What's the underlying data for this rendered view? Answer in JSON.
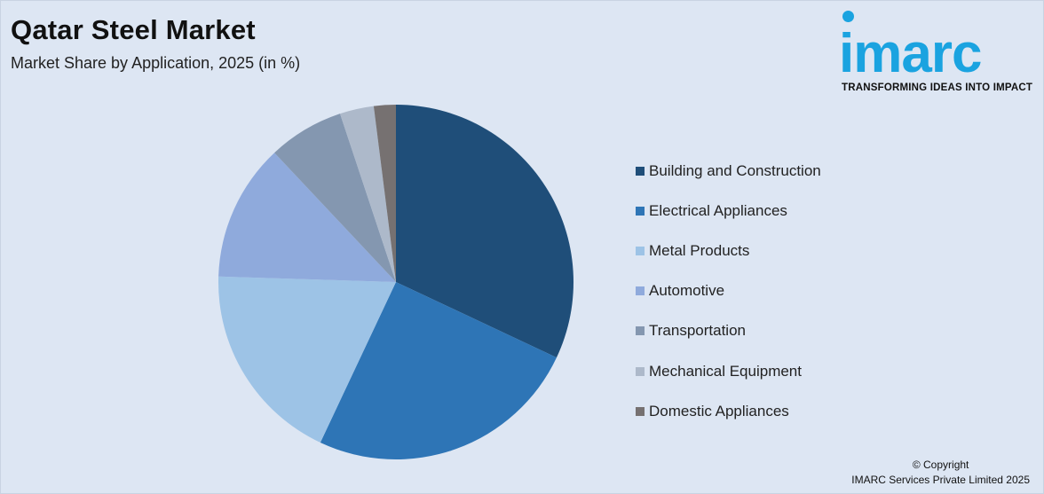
{
  "header": {
    "title": "Qatar Steel Market",
    "subtitle": "Market Share by Application, 2025 (in %)"
  },
  "logo": {
    "word": "imarc",
    "tagline": "TRANSFORMING IDEAS INTO IMPACT",
    "color": "#1aa3e0"
  },
  "chart_data": {
    "type": "pie",
    "title": "Qatar Steel Market",
    "subtitle": "Market Share by Application, 2025 (in %)",
    "legend_position": "right",
    "start": "top, clockwise",
    "slices": [
      {
        "label": "Building and Construction",
        "value": 32.0,
        "color": "#1f4e79"
      },
      {
        "label": "Electrical Appliances",
        "value": 25.0,
        "color": "#2e75b6"
      },
      {
        "label": "Metal Products",
        "value": 18.5,
        "color": "#9dc3e6"
      },
      {
        "label": "Automotive",
        "value": 12.5,
        "color": "#8faadc"
      },
      {
        "label": "Transportation",
        "value": 6.9,
        "color": "#8497b0"
      },
      {
        "label": "Mechanical Equipment",
        "value": 3.1,
        "color": "#adb9ca"
      },
      {
        "label": "Domestic Appliances",
        "value": 2.0,
        "color": "#767171"
      }
    ]
  },
  "footer": {
    "copyright_line1": "© Copyright",
    "copyright_line2": "IMARC Services Private Limited 2025"
  }
}
